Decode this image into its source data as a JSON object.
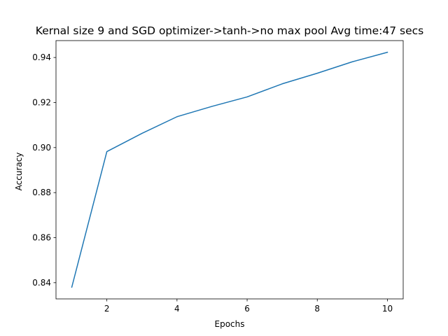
{
  "chart_data": {
    "type": "line",
    "title": "Kernal size 9 and SGD optimizer->tanh->no max pool Avg time:47 secs",
    "xlabel": "Epochs",
    "ylabel": "Accuracy",
    "x": [
      1,
      2,
      3,
      4,
      5,
      6,
      7,
      8,
      9,
      10
    ],
    "series": [
      {
        "values": [
          0.838,
          0.8982,
          0.9063,
          0.9137,
          0.9183,
          0.9225,
          0.9283,
          0.933,
          0.9381,
          0.9423
        ],
        "color": "#1f77b4"
      }
    ],
    "xticks": [
      2,
      4,
      6,
      8,
      10
    ],
    "yticks": [
      0.84,
      0.86,
      0.88,
      0.9,
      0.92,
      0.94
    ],
    "ytick_labels": [
      "0.84",
      "0.86",
      "0.88",
      "0.90",
      "0.92",
      "0.94"
    ],
    "xlim": [
      0.55,
      10.45
    ],
    "ylim": [
      0.8328,
      0.9475
    ],
    "grid": false,
    "legend": "none"
  }
}
